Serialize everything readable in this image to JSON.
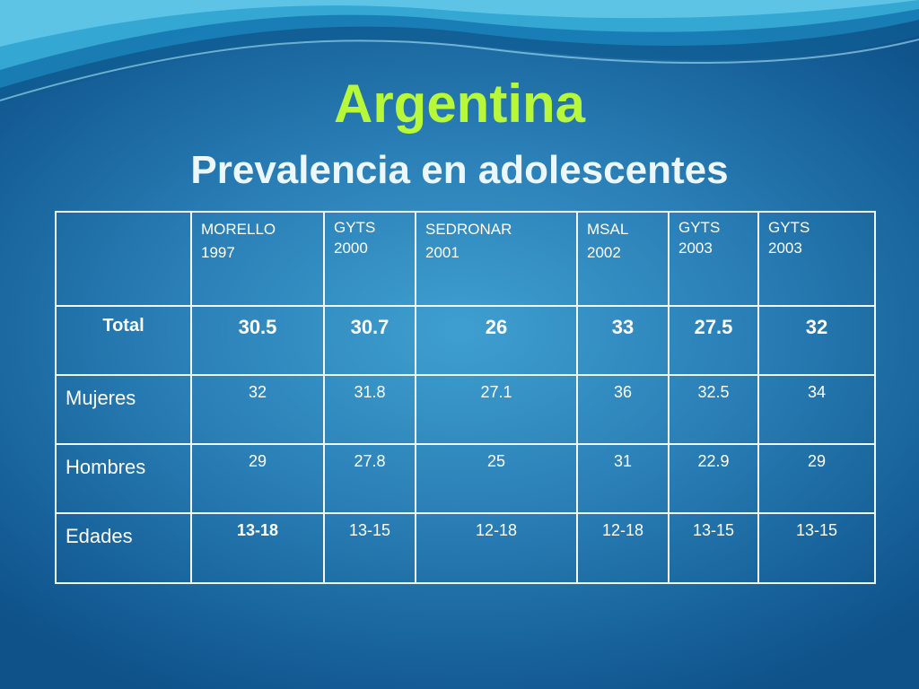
{
  "slide": {
    "title": "Argentina",
    "subtitle": "Prevalencia en adolescentes"
  },
  "table": {
    "columns": [
      {
        "source": "MORELLO",
        "year": "1997"
      },
      {
        "source": "GYTS",
        "year": "2000"
      },
      {
        "source": "SEDRONAR",
        "year": "2001"
      },
      {
        "source": "MSAL",
        "year": "2002"
      },
      {
        "source": "GYTS",
        "year": "2003"
      },
      {
        "source": "GYTS",
        "year": "2003"
      }
    ],
    "rows": [
      {
        "label": "Total",
        "values": [
          "30.5",
          "30.7",
          "26",
          "33",
          "27.5",
          "32"
        ]
      },
      {
        "label": "Mujeres",
        "values": [
          "32",
          "31.8",
          "27.1",
          "36",
          "32.5",
          "34"
        ]
      },
      {
        "label": "Hombres",
        "values": [
          "29",
          "27.8",
          "25",
          "31",
          "22.9",
          "29"
        ]
      },
      {
        "label": "Edades",
        "values": [
          "13-18",
          "13-15",
          "12-18",
          "12-18",
          "13-15",
          "13-15"
        ]
      }
    ]
  },
  "colors": {
    "title": "#b8f83a",
    "subtitle": "#ecf7fb",
    "total_row": "#b7f2f8",
    "background": "#2a7fb6"
  }
}
